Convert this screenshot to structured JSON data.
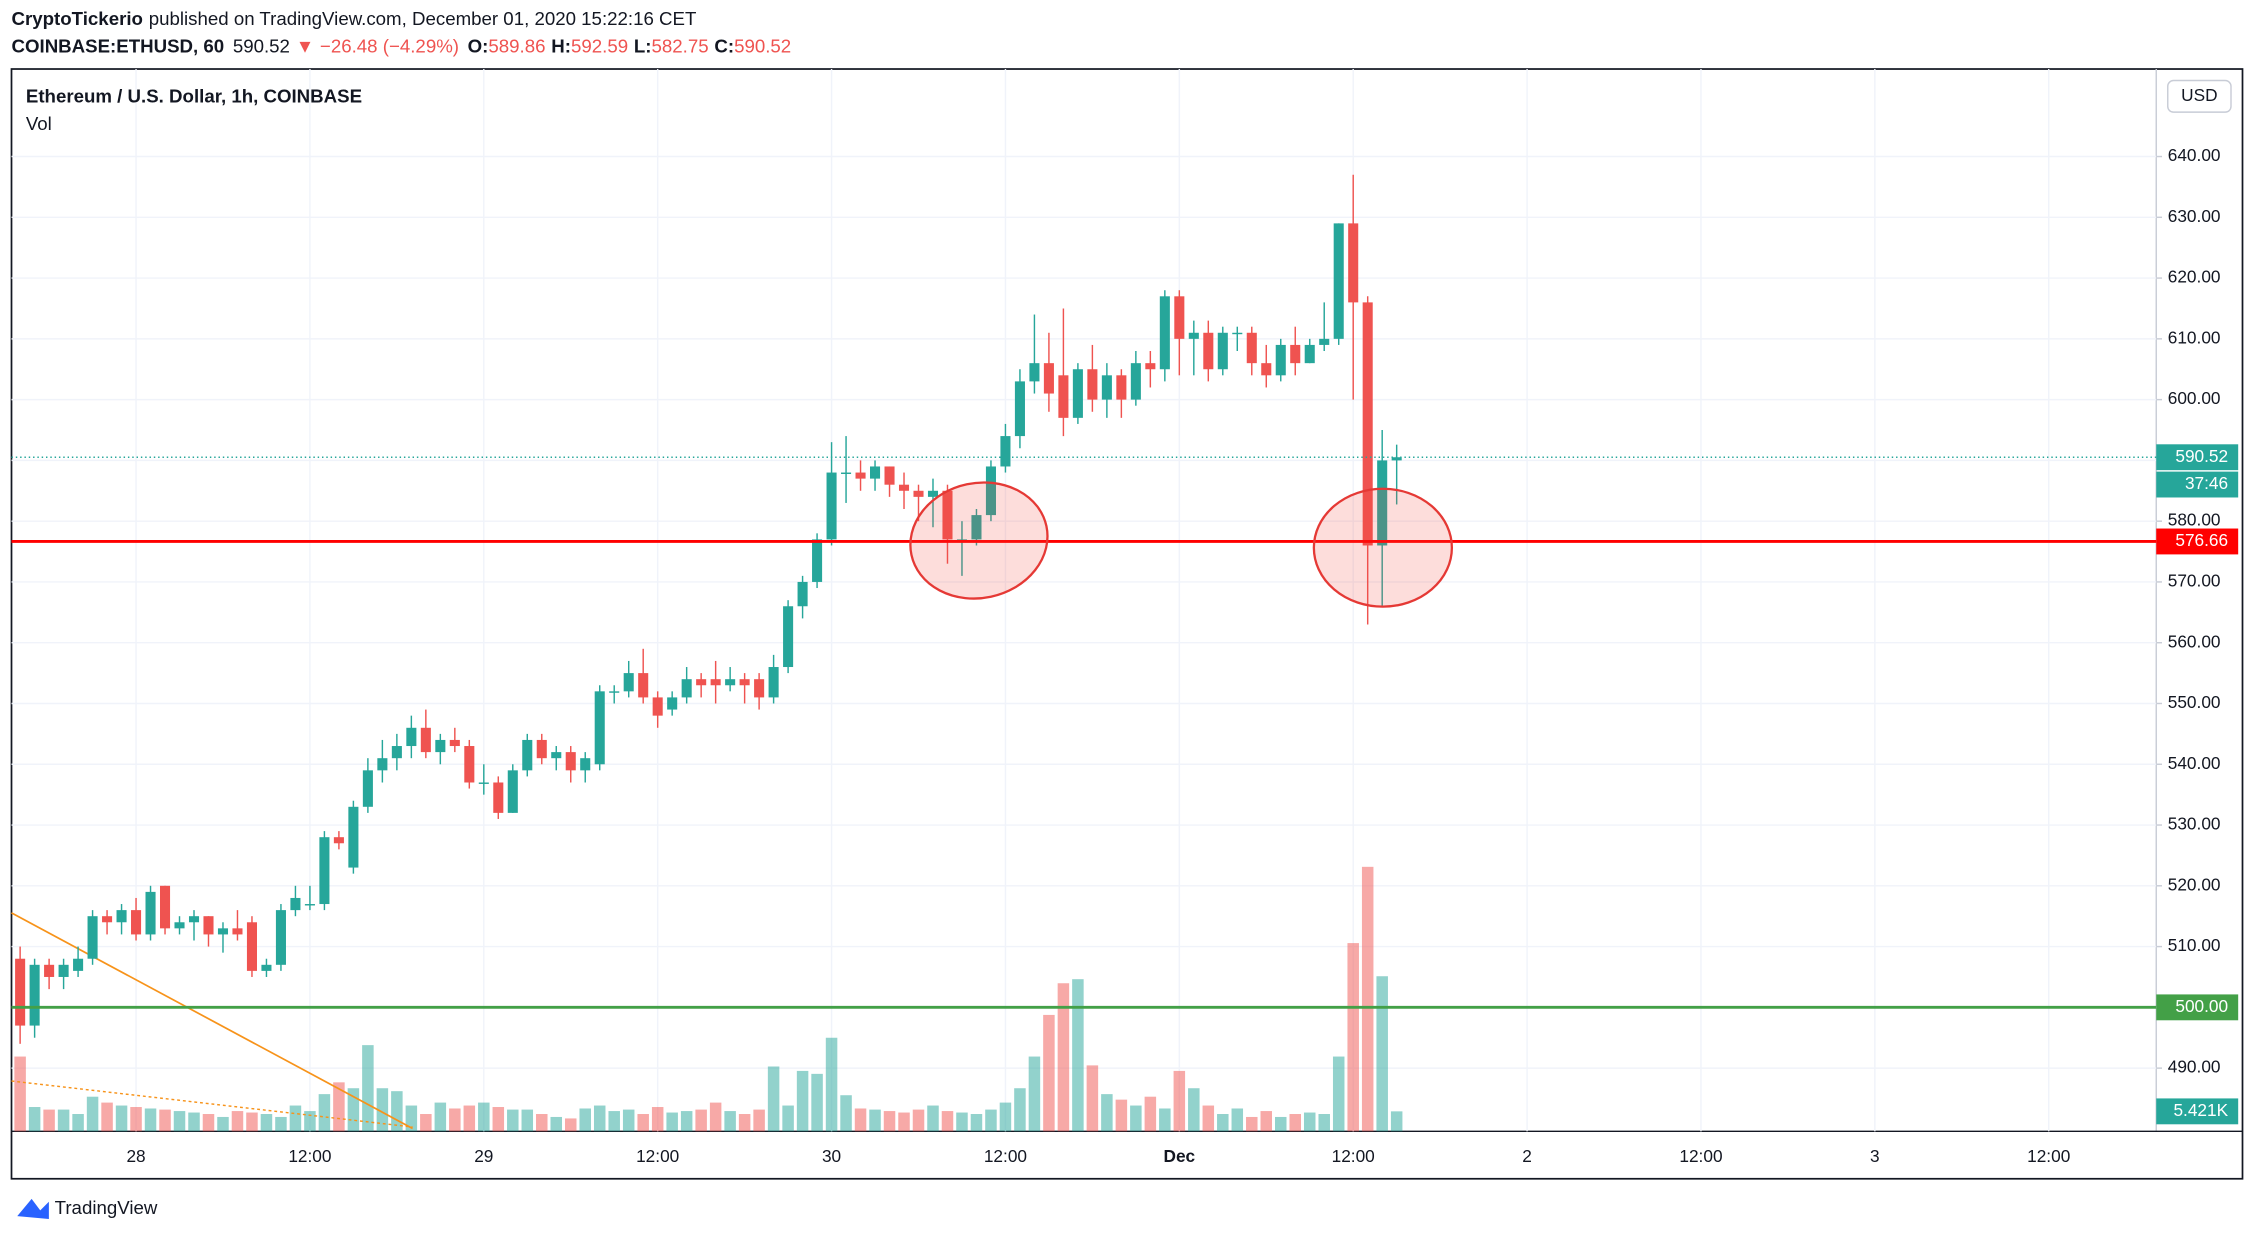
{
  "chart_data": {
    "type": "candlestick",
    "publisher": "CryptoTickerio",
    "published": "published on TradingView.com, December 01, 2020 15:22:16 CET",
    "quote": {
      "symbol": "COINBASE:ETHUSD, 60",
      "last": "590.52",
      "arrow": "▼",
      "change": "−26.48 (−4.29%)",
      "ohlc": [
        {
          "label": "O:",
          "value": "589.86"
        },
        {
          "label": "H:",
          "value": "592.59"
        },
        {
          "label": "L:",
          "value": "582.75"
        },
        {
          "label": "C:",
          "value": "590.52"
        }
      ]
    },
    "title": "Ethereum / U.S. Dollar, 1h, COINBASE",
    "volume_title": "Vol",
    "currency": "USD",
    "footer": "TradingView",
    "up_color": "#26a69a",
    "down_color": "#ef5350",
    "ylim": [
      479.6,
      654.4
    ],
    "yticks": [
      {
        "value": 490,
        "label": "490.00"
      },
      {
        "value": 500,
        "label": "500.00"
      },
      {
        "value": 510,
        "label": "510.00"
      },
      {
        "value": 520,
        "label": "520.00"
      },
      {
        "value": 530,
        "label": "530.00"
      },
      {
        "value": 540,
        "label": "540.00"
      },
      {
        "value": 550,
        "label": "550.00"
      },
      {
        "value": 560,
        "label": "560.00"
      },
      {
        "value": 570,
        "label": "570.00"
      },
      {
        "value": 580,
        "label": "580.00"
      },
      {
        "value": 590,
        "label": "590.00"
      },
      {
        "value": 600,
        "label": "600.00"
      },
      {
        "value": 610,
        "label": "610.00"
      },
      {
        "value": 620,
        "label": "620.00"
      },
      {
        "value": 630,
        "label": "630.00"
      },
      {
        "value": 640,
        "label": "640.00"
      }
    ],
    "xticks": [
      {
        "value": 8,
        "label": "28"
      },
      {
        "value": 20,
        "label": "12:00"
      },
      {
        "value": 32,
        "label": "29"
      },
      {
        "value": 44,
        "label": "12:00"
      },
      {
        "value": 56,
        "label": "30"
      },
      {
        "value": 68,
        "label": "12:00"
      },
      {
        "value": 80,
        "label": "Dec"
      },
      {
        "value": 92,
        "label": "12:00"
      },
      {
        "value": 104,
        "label": "2"
      },
      {
        "value": 116,
        "label": "12:00"
      },
      {
        "value": 128,
        "label": "3"
      },
      {
        "value": 140,
        "label": "12:00"
      }
    ],
    "grid": true,
    "candles": [
      [
        508,
        510,
        494,
        497
      ],
      [
        497,
        508,
        495,
        507
      ],
      [
        507,
        508,
        503,
        505
      ],
      [
        505,
        508,
        503,
        507
      ],
      [
        506,
        510,
        505,
        508
      ],
      [
        508,
        516,
        507,
        515
      ],
      [
        515,
        516,
        512,
        514
      ],
      [
        514,
        517,
        512,
        516
      ],
      [
        516,
        518,
        511,
        512
      ],
      [
        512,
        520,
        511,
        519
      ],
      [
        520,
        520,
        512,
        513
      ],
      [
        513,
        515,
        512,
        514
      ],
      [
        514,
        516,
        511,
        515
      ],
      [
        515,
        515,
        510,
        512
      ],
      [
        512,
        514,
        509,
        513
      ],
      [
        513,
        516,
        511,
        512
      ],
      [
        514,
        515,
        505,
        506
      ],
      [
        506,
        508,
        505,
        507
      ],
      [
        507,
        517,
        506,
        516
      ],
      [
        516,
        520,
        515,
        518
      ],
      [
        517,
        520,
        516,
        517
      ],
      [
        517,
        529,
        516,
        528
      ],
      [
        528,
        529,
        526,
        527
      ],
      [
        523,
        534,
        522,
        533
      ],
      [
        533,
        541,
        532,
        539
      ],
      [
        539,
        544,
        537,
        541
      ],
      [
        541,
        545,
        539,
        543
      ],
      [
        543,
        548,
        541,
        546
      ],
      [
        546,
        549,
        541,
        542
      ],
      [
        542,
        545,
        540,
        544
      ],
      [
        544,
        546,
        542,
        543
      ],
      [
        543,
        544,
        536,
        537
      ],
      [
        537,
        540,
        535,
        537
      ],
      [
        537,
        538,
        531,
        532
      ],
      [
        532,
        540,
        532,
        539
      ],
      [
        539,
        545,
        538,
        544
      ],
      [
        544,
        545,
        540,
        541
      ],
      [
        541,
        543,
        539,
        542
      ],
      [
        542,
        543,
        537,
        539
      ],
      [
        539,
        542,
        537,
        541
      ],
      [
        540,
        553,
        539,
        552
      ],
      [
        552,
        553,
        550,
        552
      ],
      [
        552,
        557,
        551,
        555
      ],
      [
        555,
        559,
        550,
        551
      ],
      [
        551,
        552,
        546,
        548
      ],
      [
        549,
        552,
        548,
        551
      ],
      [
        551,
        556,
        550,
        554
      ],
      [
        554,
        555,
        551,
        553
      ],
      [
        554,
        557,
        550,
        553
      ],
      [
        553,
        556,
        552,
        554
      ],
      [
        554,
        555,
        550,
        553
      ],
      [
        554,
        555,
        549,
        551
      ],
      [
        551,
        558,
        550,
        556
      ],
      [
        556,
        567,
        555,
        566
      ],
      [
        566,
        571,
        564,
        570
      ],
      [
        570,
        578,
        569,
        577
      ],
      [
        577,
        593,
        576,
        588
      ],
      [
        588,
        594,
        583,
        588
      ],
      [
        588,
        590,
        585,
        587
      ],
      [
        587,
        590,
        585,
        589
      ],
      [
        589,
        589,
        584,
        586
      ],
      [
        586,
        588,
        582,
        585
      ],
      [
        585,
        586,
        580,
        584
      ],
      [
        584,
        587,
        579,
        585
      ],
      [
        585,
        586,
        573,
        577
      ],
      [
        577,
        580,
        571,
        577
      ],
      [
        577,
        582,
        576,
        581
      ],
      [
        581,
        590,
        580,
        589
      ],
      [
        589,
        596,
        588,
        594
      ],
      [
        594,
        605,
        592,
        603
      ],
      [
        603,
        614,
        601,
        606
      ],
      [
        606,
        611,
        598,
        601
      ],
      [
        604,
        615,
        594,
        597
      ],
      [
        597,
        606,
        596,
        605
      ],
      [
        605,
        609,
        598,
        600
      ],
      [
        600,
        606,
        597,
        604
      ],
      [
        604,
        605,
        597,
        600
      ],
      [
        600,
        608,
        599,
        606
      ],
      [
        606,
        608,
        602,
        605
      ],
      [
        605,
        618,
        603,
        617
      ],
      [
        617,
        618,
        604,
        610
      ],
      [
        610,
        613,
        604,
        611
      ],
      [
        611,
        613,
        603,
        605
      ],
      [
        605,
        612,
        604,
        611
      ],
      [
        611,
        612,
        608,
        611
      ],
      [
        611,
        612,
        604,
        606
      ],
      [
        606,
        609,
        602,
        604
      ],
      [
        604,
        610,
        603,
        609
      ],
      [
        609,
        612,
        604,
        606
      ],
      [
        606,
        610,
        606,
        609
      ],
      [
        609,
        616,
        608,
        610
      ],
      [
        610,
        629,
        609,
        629
      ],
      [
        629,
        637,
        600,
        616
      ],
      [
        616,
        617,
        563,
        576
      ],
      [
        576,
        595,
        566,
        590
      ],
      [
        590,
        592.59,
        582.75,
        590.52
      ]
    ],
    "volumes": [
      20300,
      6600,
      5900,
      5900,
      4700,
      9400,
      7800,
      7000,
      6600,
      6200,
      5900,
      5500,
      5100,
      4700,
      3900,
      5500,
      5100,
      4700,
      3900,
      7000,
      5500,
      10100,
      13300,
      11700,
      23400,
      11700,
      10900,
      7000,
      4700,
      7800,
      6200,
      7000,
      7800,
      6600,
      5900,
      5900,
      4700,
      3900,
      3500,
      6200,
      7000,
      5500,
      5900,
      4700,
      6600,
      5100,
      5500,
      5900,
      7800,
      5500,
      4700,
      5900,
      17600,
      7000,
      16400,
      15600,
      25400,
      9800,
      6200,
      5900,
      5500,
      5100,
      5900,
      7000,
      5500,
      5100,
      4700,
      5900,
      7800,
      11700,
      20300,
      31600,
      40200,
      41300,
      17900,
      10100,
      8600,
      7000,
      9400,
      6200,
      16400,
      11700,
      7000,
      4700,
      6200,
      3900,
      5500,
      3900,
      4700,
      5100,
      4700,
      20300,
      51100,
      71800,
      42100,
      5421
    ],
    "last_volume_label": "5.421K",
    "price_lines": [
      {
        "value": 576.66,
        "label": "576.66",
        "color": "#ff0000"
      },
      {
        "value": 500,
        "label": "500.00",
        "color": "#43a047"
      }
    ],
    "last_price": {
      "value": 590.52,
      "label": "590.52",
      "countdown": "37:46"
    }
  }
}
